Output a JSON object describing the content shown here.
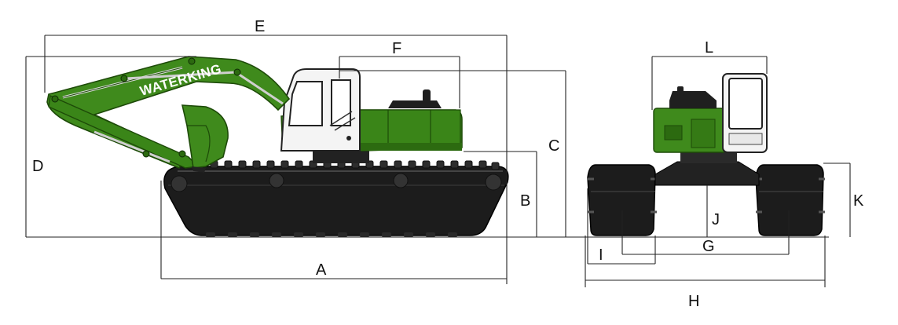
{
  "brand_text": "WATERKING",
  "colors": {
    "body_green": "#3f8a1c",
    "dark_green": "#2c6a10",
    "track_black": "#1c1c1c",
    "cab_white": "#f4f4f4",
    "line": "#222222"
  },
  "dimension_labels": {
    "A": "A",
    "B": "B",
    "C": "C",
    "D": "D",
    "E": "E",
    "F": "F",
    "G": "G",
    "H": "H",
    "I": "I",
    "J": "J",
    "K": "K",
    "L": "L"
  }
}
